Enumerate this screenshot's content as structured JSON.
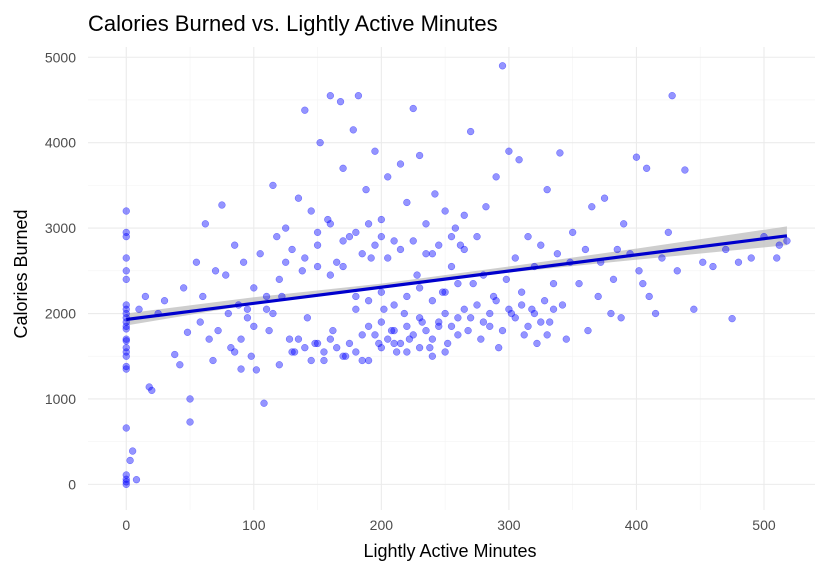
{
  "chart_data": {
    "type": "scatter",
    "title": "Calories Burned vs. Lightly Active Minutes",
    "xlabel": "Lightly Active Minutes",
    "ylabel": "Calories Burned",
    "xlim": [
      -30,
      540
    ],
    "ylim": [
      -300,
      5120
    ],
    "x_ticks": [
      0,
      100,
      200,
      300,
      400,
      500
    ],
    "y_ticks": [
      0,
      1000,
      2000,
      3000,
      4000,
      5000
    ],
    "x_tick_labels": [
      "0",
      "100",
      "200",
      "300",
      "400",
      "500"
    ],
    "y_tick_labels": [
      "0",
      "1000",
      "2000",
      "3000",
      "4000",
      "5000"
    ],
    "grid": true,
    "legend": "none",
    "point_color": "#0000ff",
    "line_color": "#0000cd",
    "band_color": "#bdbdbd",
    "fit_line": {
      "method": "linear",
      "start": [
        0,
        1930
      ],
      "end": [
        518,
        2910
      ],
      "se_band": [
        [
          0,
          1860,
          2000
        ],
        [
          100,
          2110,
          2190
        ],
        [
          200,
          2300,
          2350
        ],
        [
          300,
          2480,
          2550
        ],
        [
          400,
          2630,
          2760
        ],
        [
          518,
          2800,
          3020
        ]
      ]
    },
    "points": [
      [
        0,
        0
      ],
      [
        0,
        30
      ],
      [
        0,
        60
      ],
      [
        0,
        110
      ],
      [
        0,
        660
      ],
      [
        3,
        280
      ],
      [
        5,
        390
      ],
      [
        8,
        55
      ],
      [
        0,
        1350
      ],
      [
        0,
        1380
      ],
      [
        0,
        1500
      ],
      [
        0,
        1550
      ],
      [
        0,
        1600
      ],
      [
        0,
        1680
      ],
      [
        0,
        1700
      ],
      [
        0,
        1820
      ],
      [
        0,
        1850
      ],
      [
        0,
        1900
      ],
      [
        0,
        1950
      ],
      [
        0,
        2000
      ],
      [
        0,
        2050
      ],
      [
        0,
        2100
      ],
      [
        0,
        2400
      ],
      [
        0,
        2500
      ],
      [
        0,
        2650
      ],
      [
        0,
        2900
      ],
      [
        0,
        2950
      ],
      [
        0,
        3200
      ],
      [
        10,
        2050
      ],
      [
        15,
        2200
      ],
      [
        18,
        1140
      ],
      [
        20,
        1100
      ],
      [
        25,
        2000
      ],
      [
        30,
        2150
      ],
      [
        38,
        1520
      ],
      [
        42,
        1400
      ],
      [
        45,
        2300
      ],
      [
        48,
        1780
      ],
      [
        50,
        1000
      ],
      [
        50,
        730
      ],
      [
        55,
        2600
      ],
      [
        58,
        1900
      ],
      [
        60,
        2200
      ],
      [
        62,
        3050
      ],
      [
        65,
        1700
      ],
      [
        68,
        1450
      ],
      [
        70,
        2500
      ],
      [
        72,
        1800
      ],
      [
        75,
        3270
      ],
      [
        78,
        2450
      ],
      [
        80,
        2000
      ],
      [
        82,
        1600
      ],
      [
        85,
        2800
      ],
      [
        88,
        2100
      ],
      [
        90,
        1350
      ],
      [
        92,
        2600
      ],
      [
        95,
        1950
      ],
      [
        98,
        1500
      ],
      [
        100,
        2300
      ],
      [
        102,
        1340
      ],
      [
        105,
        2700
      ],
      [
        108,
        950
      ],
      [
        110,
        2050
      ],
      [
        112,
        1800
      ],
      [
        115,
        3500
      ],
      [
        118,
        2900
      ],
      [
        120,
        1400
      ],
      [
        122,
        2200
      ],
      [
        125,
        3000
      ],
      [
        128,
        1700
      ],
      [
        130,
        2750
      ],
      [
        132,
        1550
      ],
      [
        135,
        3350
      ],
      [
        138,
        2500
      ],
      [
        140,
        4380
      ],
      [
        142,
        1950
      ],
      [
        145,
        3200
      ],
      [
        148,
        1650
      ],
      [
        150,
        2800
      ],
      [
        152,
        4000
      ],
      [
        155,
        1450
      ],
      [
        158,
        3100
      ],
      [
        160,
        4550
      ],
      [
        162,
        1800
      ],
      [
        165,
        2600
      ],
      [
        168,
        4480
      ],
      [
        170,
        3700
      ],
      [
        172,
        1500
      ],
      [
        175,
        2900
      ],
      [
        178,
        4150
      ],
      [
        180,
        2200
      ],
      [
        182,
        4550
      ],
      [
        185,
        1750
      ],
      [
        188,
        3450
      ],
      [
        190,
        1450
      ],
      [
        192,
        2650
      ],
      [
        195,
        3900
      ],
      [
        198,
        1650
      ],
      [
        200,
        3100
      ],
      [
        202,
        2050
      ],
      [
        205,
        3600
      ],
      [
        208,
        1800
      ],
      [
        210,
        2850
      ],
      [
        212,
        1550
      ],
      [
        215,
        3750
      ],
      [
        218,
        2000
      ],
      [
        220,
        3300
      ],
      [
        222,
        1700
      ],
      [
        225,
        4400
      ],
      [
        228,
        2450
      ],
      [
        230,
        3850
      ],
      [
        232,
        1900
      ],
      [
        235,
        3050
      ],
      [
        238,
        1600
      ],
      [
        240,
        2700
      ],
      [
        242,
        3400
      ],
      [
        245,
        1850
      ],
      [
        248,
        2250
      ],
      [
        250,
        3200
      ],
      [
        252,
        1650
      ],
      [
        255,
        2550
      ],
      [
        258,
        3000
      ],
      [
        260,
        1950
      ],
      [
        262,
        2800
      ],
      [
        265,
        3150
      ],
      [
        268,
        1800
      ],
      [
        270,
        4130
      ],
      [
        272,
        2350
      ],
      [
        275,
        2900
      ],
      [
        278,
        1700
      ],
      [
        280,
        2450
      ],
      [
        282,
        3250
      ],
      [
        285,
        1850
      ],
      [
        288,
        2200
      ],
      [
        290,
        3600
      ],
      [
        292,
        1600
      ],
      [
        295,
        4900
      ],
      [
        298,
        2400
      ],
      [
        300,
        3900
      ],
      [
        302,
        2000
      ],
      [
        305,
        2650
      ],
      [
        308,
        3800
      ],
      [
        310,
        2250
      ],
      [
        312,
        1750
      ],
      [
        315,
        2900
      ],
      [
        318,
        2050
      ],
      [
        320,
        2550
      ],
      [
        322,
        1650
      ],
      [
        325,
        2800
      ],
      [
        328,
        2150
      ],
      [
        330,
        3450
      ],
      [
        332,
        1900
      ],
      [
        335,
        2350
      ],
      [
        338,
        2700
      ],
      [
        340,
        3880
      ],
      [
        342,
        2100
      ],
      [
        345,
        1700
      ],
      [
        348,
        2600
      ],
      [
        350,
        2950
      ],
      [
        355,
        2350
      ],
      [
        360,
        2750
      ],
      [
        362,
        1800
      ],
      [
        365,
        3250
      ],
      [
        370,
        2200
      ],
      [
        372,
        2600
      ],
      [
        375,
        3350
      ],
      [
        380,
        2000
      ],
      [
        382,
        2400
      ],
      [
        385,
        2750
      ],
      [
        388,
        1950
      ],
      [
        390,
        3050
      ],
      [
        395,
        2700
      ],
      [
        400,
        3830
      ],
      [
        402,
        2500
      ],
      [
        405,
        2350
      ],
      [
        408,
        3700
      ],
      [
        410,
        2200
      ],
      [
        415,
        2000
      ],
      [
        420,
        2650
      ],
      [
        425,
        2950
      ],
      [
        428,
        4550
      ],
      [
        432,
        2500
      ],
      [
        438,
        3680
      ],
      [
        445,
        2050
      ],
      [
        452,
        2600
      ],
      [
        460,
        2550
      ],
      [
        470,
        2750
      ],
      [
        475,
        1940
      ],
      [
        480,
        2600
      ],
      [
        490,
        2650
      ],
      [
        500,
        2900
      ],
      [
        510,
        2650
      ],
      [
        512,
        2800
      ],
      [
        518,
        2850
      ],
      [
        130,
        1550
      ],
      [
        135,
        1700
      ],
      [
        140,
        1600
      ],
      [
        145,
        1450
      ],
      [
        150,
        1650
      ],
      [
        155,
        1550
      ],
      [
        160,
        1700
      ],
      [
        165,
        1600
      ],
      [
        170,
        1500
      ],
      [
        175,
        1650
      ],
      [
        180,
        1550
      ],
      [
        185,
        1450
      ],
      [
        190,
        1850
      ],
      [
        195,
        1750
      ],
      [
        200,
        1900
      ],
      [
        205,
        1700
      ],
      [
        210,
        1800
      ],
      [
        215,
        1650
      ],
      [
        220,
        1850
      ],
      [
        225,
        1750
      ],
      [
        230,
        1950
      ],
      [
        235,
        1800
      ],
      [
        240,
        1700
      ],
      [
        245,
        1900
      ],
      [
        250,
        2000
      ],
      [
        255,
        1850
      ],
      [
        260,
        1750
      ],
      [
        265,
        2050
      ],
      [
        270,
        1950
      ],
      [
        275,
        2100
      ],
      [
        280,
        1900
      ],
      [
        285,
        2000
      ],
      [
        290,
        2150
      ],
      [
        295,
        1800
      ],
      [
        300,
        2050
      ],
      [
        305,
        1950
      ],
      [
        310,
        2100
      ],
      [
        315,
        1850
      ],
      [
        320,
        2000
      ],
      [
        325,
        1900
      ],
      [
        330,
        1750
      ],
      [
        335,
        2050
      ],
      [
        180,
        2050
      ],
      [
        190,
        2150
      ],
      [
        200,
        2250
      ],
      [
        210,
        2100
      ],
      [
        220,
        2200
      ],
      [
        230,
        2300
      ],
      [
        240,
        2150
      ],
      [
        250,
        2250
      ],
      [
        260,
        2350
      ],
      [
        200,
        1600
      ],
      [
        210,
        1650
      ],
      [
        220,
        1550
      ],
      [
        230,
        1600
      ],
      [
        240,
        1500
      ],
      [
        250,
        1550
      ],
      [
        185,
        2700
      ],
      [
        195,
        2800
      ],
      [
        205,
        2650
      ],
      [
        215,
        2750
      ],
      [
        225,
        2850
      ],
      [
        235,
        2700
      ],
      [
        245,
        2800
      ],
      [
        255,
        2900
      ],
      [
        265,
        2750
      ],
      [
        150,
        2950
      ],
      [
        160,
        3050
      ],
      [
        170,
        2850
      ],
      [
        180,
        2950
      ],
      [
        190,
        3050
      ],
      [
        200,
        2900
      ],
      [
        140,
        2650
      ],
      [
        150,
        2550
      ],
      [
        160,
        2450
      ],
      [
        170,
        2550
      ],
      [
        120,
        2400
      ],
      [
        125,
        2600
      ],
      [
        110,
        2200
      ],
      [
        115,
        2000
      ],
      [
        100,
        1850
      ],
      [
        95,
        2050
      ],
      [
        90,
        1700
      ],
      [
        85,
        1550
      ]
    ]
  }
}
